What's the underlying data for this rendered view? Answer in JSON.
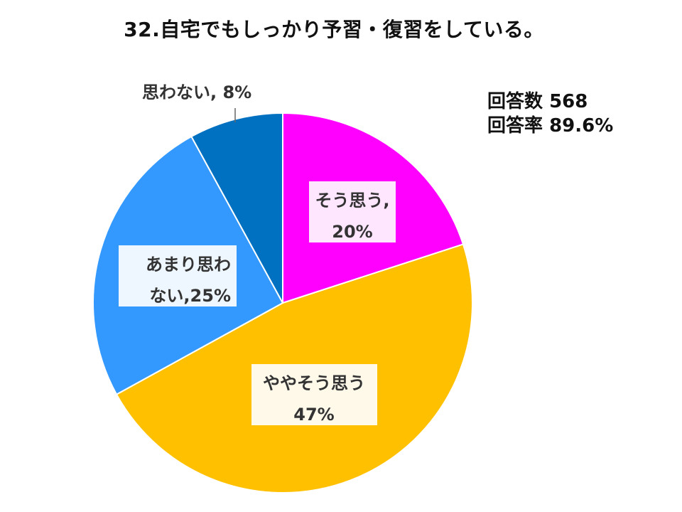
{
  "title": "32.自宅でもしっかり予習・復習をしている。",
  "stats": {
    "count_label": "回答数",
    "count_value": "568",
    "rate_label": "回答率",
    "rate_value": "89.6%"
  },
  "chart_data": {
    "type": "pie",
    "title": "32.自宅でもしっかり予習・復習をしている。",
    "categories": [
      "そう思う",
      "ややそう思う",
      "あまり思わない",
      "思わない"
    ],
    "values": [
      20,
      47,
      25,
      8
    ],
    "unit": "%",
    "colors": [
      "#FF00FF",
      "#FFC000",
      "#3399FF",
      "#0070C0"
    ],
    "labels": [
      {
        "lines": [
          "そう思う,",
          "20%"
        ],
        "box_fill": "#FFE6FF"
      },
      {
        "lines": [
          "ややそう思う",
          "47%"
        ],
        "box_fill": "#FFF9EA"
      },
      {
        "lines": [
          "あまり思わ",
          "ない,25%"
        ],
        "box_fill": "#EEF6FF"
      },
      {
        "lines": [
          "思わない, 8%"
        ],
        "box_fill": "none"
      }
    ]
  }
}
